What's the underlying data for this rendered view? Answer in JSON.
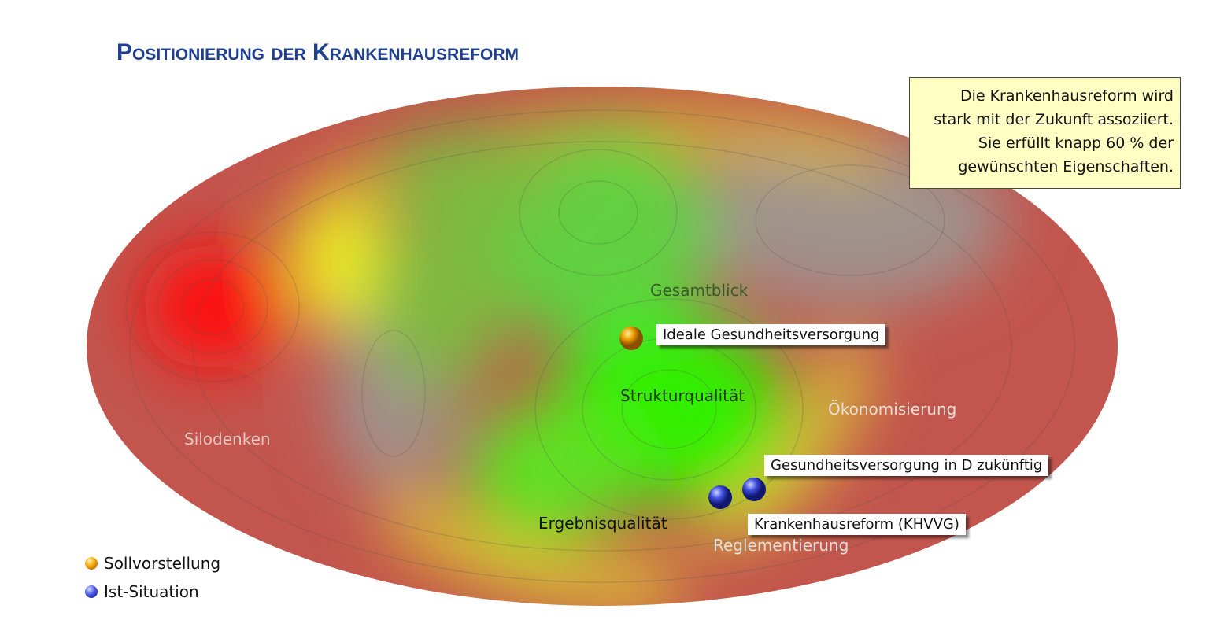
{
  "header": {
    "title": "Positionierung der Krankenhausreform"
  },
  "note": {
    "lines": [
      "Die Krankenhausreform wird",
      "stark mit der Zukunft assoziiert.",
      "Sie erfüllt knapp 60 % der",
      "gewünschten Eigenschaften."
    ]
  },
  "regions": [
    {
      "label": "Gesamtblick"
    },
    {
      "label": "Strukturqualität"
    },
    {
      "label": "Ökonomisierung"
    },
    {
      "label": "Silodenken"
    },
    {
      "label": "Ergebnisqualität"
    },
    {
      "label": "Reglementierung"
    }
  ],
  "markers": [
    {
      "label": "Ideale Gesundheitsversorgung"
    },
    {
      "label": "Gesundheitsversorgung in D zukünftig"
    },
    {
      "label": "Krankenhausreform (KHVVG)"
    }
  ],
  "legend": [
    {
      "label": "Sollvorstellung"
    },
    {
      "label": "Ist-Situation"
    }
  ]
}
